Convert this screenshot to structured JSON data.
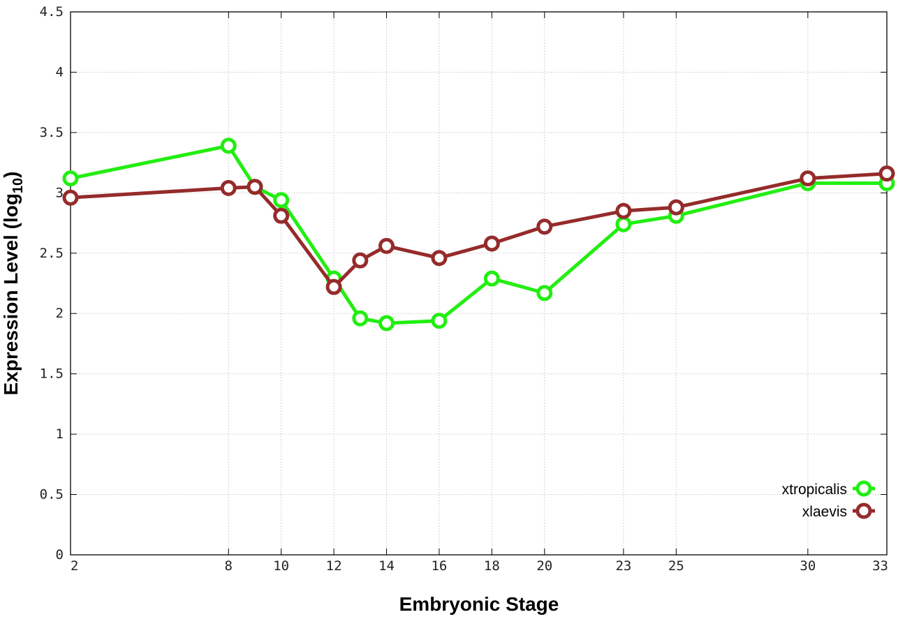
{
  "chart_data": {
    "type": "line",
    "title": "",
    "xlabel": "Embryonic Stage",
    "ylabel_main": "Expression Level (log",
    "ylabel_sub": "10",
    "ylabel_close": ")",
    "xlim": [
      2,
      33
    ],
    "ylim": [
      0,
      4.5
    ],
    "x_ticks": [
      2,
      8,
      10,
      12,
      14,
      16,
      18,
      20,
      23,
      25,
      30,
      33
    ],
    "x_tick_labels": [
      "2",
      "8",
      "10",
      "12",
      "14",
      "16",
      "18",
      "20",
      "23",
      "25",
      "30",
      "33"
    ],
    "y_ticks": [
      0,
      0.5,
      1,
      1.5,
      2,
      2.5,
      3,
      3.5,
      4,
      4.5
    ],
    "y_tick_labels": [
      "0",
      "0.5",
      "1",
      "1.5",
      "2",
      "2.5",
      "3",
      "3.5",
      "4",
      "4.5"
    ],
    "grid": true,
    "legend_position": "bottom-right",
    "x": [
      2,
      8,
      9,
      10,
      12,
      13,
      14,
      16,
      18,
      20,
      23,
      25,
      30,
      33
    ],
    "series": [
      {
        "name": "xtropicalis",
        "color": "#22ee11",
        "values": [
          3.12,
          3.39,
          3.05,
          2.94,
          2.29,
          1.96,
          1.92,
          1.94,
          2.29,
          2.17,
          2.74,
          2.81,
          3.08,
          3.08
        ]
      },
      {
        "name": "xlaevis",
        "color": "#952b2b",
        "values": [
          2.96,
          3.04,
          3.05,
          2.81,
          2.22,
          2.44,
          2.56,
          2.46,
          2.58,
          2.72,
          2.85,
          2.88,
          3.12,
          3.16
        ]
      }
    ]
  }
}
